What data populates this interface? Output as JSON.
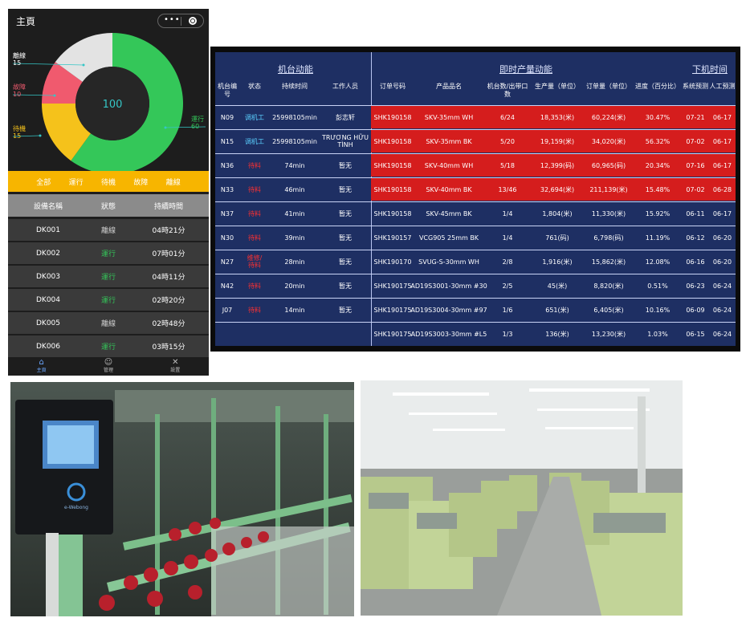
{
  "app": {
    "title": "主頁",
    "capsule": {
      "more_icon": "more-dots-icon",
      "close_icon": "target-icon"
    },
    "donut": {
      "center_value": "100",
      "segments": [
        {
          "label": "離線",
          "value": 15,
          "color": "#e3e3e3"
        },
        {
          "label": "故障",
          "value": 10,
          "color": "#f05a6e"
        },
        {
          "label": "待機",
          "value": 15,
          "color": "#f5c21b"
        },
        {
          "label": "運行",
          "value": 60,
          "color": "#34c759"
        }
      ]
    },
    "filters": [
      "全部",
      "運行",
      "待機",
      "故障",
      "離線"
    ],
    "table": {
      "headers": [
        "設備名稱",
        "狀態",
        "持續時間"
      ],
      "rows": [
        {
          "name": "DK001",
          "status": "離線",
          "duration": "04時21分"
        },
        {
          "name": "DK002",
          "status": "運行",
          "duration": "07時01分"
        },
        {
          "name": "DK003",
          "status": "運行",
          "duration": "04時11分"
        },
        {
          "name": "DK004",
          "status": "運行",
          "duration": "02時20分"
        },
        {
          "name": "DK005",
          "status": "離線",
          "duration": "02時48分"
        },
        {
          "name": "DK006",
          "status": "運行",
          "duration": "03時15分"
        }
      ]
    },
    "tabbar": [
      {
        "label": "主頁",
        "icon": "home-icon"
      },
      {
        "label": "管理",
        "icon": "user-manage-icon"
      },
      {
        "label": "設置",
        "icon": "tools-icon"
      }
    ]
  },
  "dashboard": {
    "sections": {
      "machine": "机台动能",
      "production": "即时产量动能",
      "offline": "下机时间"
    },
    "headers": [
      "机台编号",
      "状态",
      "持续时间",
      "工作人员",
      "订单号码",
      "产品品名",
      "机台数/出带口数",
      "生产量（单位）",
      "订单量（单位）",
      "进度（百分比）",
      "系统预测",
      "人工预测"
    ],
    "rows": [
      {
        "machine": "N09",
        "status": "调机工",
        "duration": "25998105min",
        "staff": "彭志轩",
        "order": "SHK190158",
        "product": "SKV-35mm WH",
        "ratio": "6/24",
        "output": "18,353(米)",
        "quantity": "60,224(米)",
        "progress": "30.47%",
        "sys": "07-21",
        "manual": "06-17",
        "hot": true
      },
      {
        "machine": "N15",
        "status": "调机工",
        "duration": "25998105min",
        "staff": "TRƯƠNG HỮU TÌNH",
        "order": "SHK190158",
        "product": "SKV-35mm BK",
        "ratio": "5/20",
        "output": "19,159(米)",
        "quantity": "34,020(米)",
        "progress": "56.32%",
        "sys": "07-02",
        "manual": "06-17",
        "hot": true
      },
      {
        "machine": "N36",
        "status": "待料",
        "duration": "74min",
        "staff": "暂无",
        "order": "SHK190158",
        "product": "SKV-40mm WH",
        "ratio": "5/18",
        "output": "12,399(码)",
        "quantity": "60,965(码)",
        "progress": "20.34%",
        "sys": "07-16",
        "manual": "06-17",
        "hot": true
      },
      {
        "machine": "N33",
        "status": "待料",
        "duration": "46min",
        "staff": "暂无",
        "order": "SHK190158",
        "product": "SKV-40mm BK",
        "ratio": "13/46",
        "output": "32,694(米)",
        "quantity": "211,139(米)",
        "progress": "15.48%",
        "sys": "07-02",
        "manual": "06-28",
        "hot": true
      },
      {
        "machine": "N37",
        "status": "待料",
        "duration": "41min",
        "staff": "暂无",
        "order": "SHK190158",
        "product": "SKV-45mm BK",
        "ratio": "1/4",
        "output": "1,804(米)",
        "quantity": "11,330(米)",
        "progress": "15.92%",
        "sys": "06-11",
        "manual": "06-17",
        "hot": false
      },
      {
        "machine": "N30",
        "status": "待料",
        "duration": "39min",
        "staff": "暂无",
        "order": "SHK190157",
        "product": "VCG905 25mm BK",
        "ratio": "1/4",
        "output": "761(码)",
        "quantity": "6,798(码)",
        "progress": "11.19%",
        "sys": "06-12",
        "manual": "06-20",
        "hot": false
      },
      {
        "machine": "N27",
        "status": "维修/待料",
        "duration": "28min",
        "staff": "暂无",
        "order": "SHK190170",
        "product": "SVUG-S-30mm WH",
        "ratio": "2/8",
        "output": "1,916(米)",
        "quantity": "15,862(米)",
        "progress": "12.08%",
        "sys": "06-16",
        "manual": "06-20",
        "hot": false
      },
      {
        "machine": "N42",
        "status": "待料",
        "duration": "20min",
        "staff": "暂无",
        "order": "SHK190175",
        "product": "AD19S3001-30mm #30",
        "ratio": "2/5",
        "output": "45(米)",
        "quantity": "8,820(米)",
        "progress": "0.51%",
        "sys": "06-23",
        "manual": "06-24",
        "hot": false
      },
      {
        "machine": "J07",
        "status": "待料",
        "duration": "14min",
        "staff": "暂无",
        "order": "SHK190175",
        "product": "AD19S3004-30mm #97",
        "ratio": "1/6",
        "output": "651(米)",
        "quantity": "6,405(米)",
        "progress": "10.16%",
        "sys": "06-09",
        "manual": "06-24",
        "hot": false
      },
      {
        "machine": "",
        "status": "",
        "duration": "",
        "staff": "",
        "order": "SHK190175",
        "product": "AD19S3003-30mm #L5",
        "ratio": "1/3",
        "output": "136(米)",
        "quantity": "13,230(米)",
        "progress": "1.03%",
        "sys": "06-15",
        "manual": "06-24",
        "hot": false
      }
    ]
  },
  "photos": {
    "device_brand": "e-Webong"
  }
}
